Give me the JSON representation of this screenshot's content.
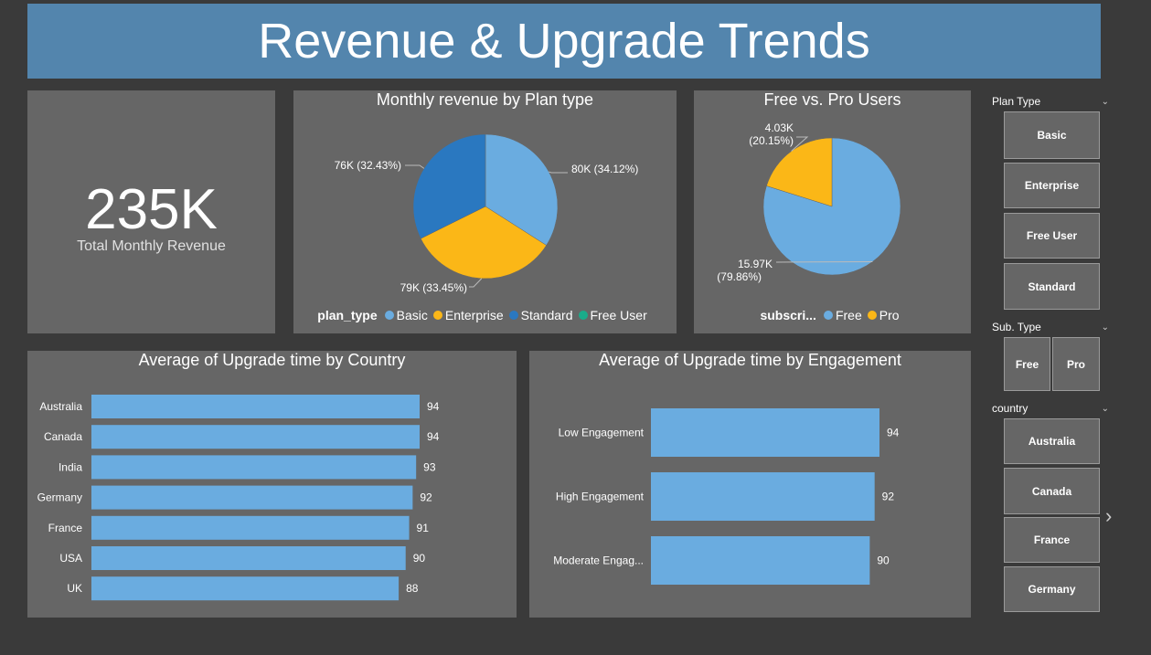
{
  "title": "Revenue & Upgrade Trends",
  "kpi": {
    "value": "235K",
    "label": "Total Monthly Revenue"
  },
  "colors": {
    "basic": "#6aace0",
    "enterprise": "#fbb717",
    "standard": "#2a78c0",
    "free_user": "#1aab8a",
    "free": "#6aace0",
    "pro": "#fbb717",
    "bar": "#6aace0"
  },
  "chart_data": [
    {
      "type": "pie",
      "title": "Monthly revenue by Plan type",
      "legend_title": "plan_type",
      "slices": [
        {
          "name": "Basic",
          "value": 80,
          "label": "80K (34.12%)"
        },
        {
          "name": "Enterprise",
          "value": 79,
          "label": "79K (33.45%)"
        },
        {
          "name": "Standard",
          "value": 76,
          "label": "76K (32.43%)"
        }
      ],
      "legend": [
        "Basic",
        "Enterprise",
        "Standard",
        "Free User"
      ]
    },
    {
      "type": "pie",
      "title": "Free vs. Pro Users",
      "legend_title": "subscri...",
      "slices": [
        {
          "name": "Free",
          "value": 15.97,
          "label_line1": "15.97K",
          "label_line2": "(79.86%)"
        },
        {
          "name": "Pro",
          "value": 4.03,
          "label_line1": "4.03K",
          "label_line2": "(20.15%)"
        }
      ],
      "legend": [
        "Free",
        "Pro"
      ]
    },
    {
      "type": "bar",
      "orientation": "horizontal",
      "title": "Average of Upgrade time by Country",
      "categories": [
        "Australia",
        "Canada",
        "India",
        "Germany",
        "France",
        "USA",
        "UK"
      ],
      "values": [
        94,
        94,
        93,
        92,
        91,
        90,
        88
      ],
      "xlim": [
        0,
        94
      ]
    },
    {
      "type": "bar",
      "orientation": "horizontal",
      "title": "Average of Upgrade time by Engagement",
      "categories": [
        "Low Engagement",
        "High Engagement",
        "Moderate Engag..."
      ],
      "values": [
        94,
        92,
        90
      ],
      "xlim": [
        0,
        94
      ]
    }
  ],
  "slicers": {
    "plan_type": {
      "title": "Plan Type",
      "options": [
        "Basic",
        "Enterprise",
        "Free User",
        "Standard"
      ]
    },
    "sub_type": {
      "title": "Sub. Type",
      "options": [
        "Free",
        "Pro"
      ]
    },
    "country": {
      "title": "country",
      "options": [
        "Australia",
        "Canada",
        "France",
        "Germany"
      ]
    }
  },
  "icons": {
    "chevron": "chevron-down-icon",
    "next": "chevron-right-icon"
  }
}
